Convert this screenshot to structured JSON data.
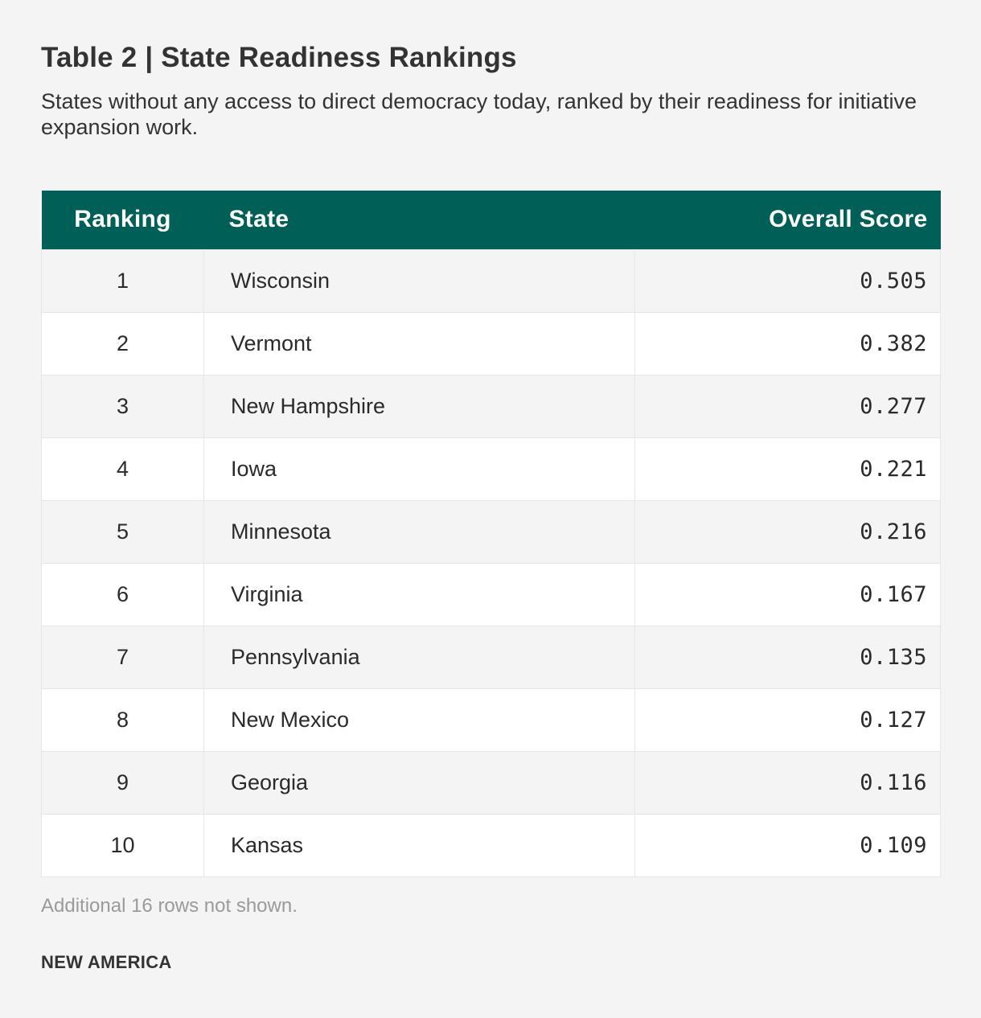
{
  "header": {
    "title": "Table 2 | State Readiness Rankings",
    "subtitle": "States without any access to direct democracy today, ranked by their readiness for initiative expansion work."
  },
  "table": {
    "columns": [
      "Ranking",
      "State",
      "Overall Score"
    ],
    "rows": [
      {
        "rank": "1",
        "state": "Wisconsin",
        "score": "0.505"
      },
      {
        "rank": "2",
        "state": "Vermont",
        "score": "0.382"
      },
      {
        "rank": "3",
        "state": "New Hampshire",
        "score": "0.277"
      },
      {
        "rank": "4",
        "state": "Iowa",
        "score": "0.221"
      },
      {
        "rank": "5",
        "state": "Minnesota",
        "score": "0.216"
      },
      {
        "rank": "6",
        "state": "Virginia",
        "score": "0.167"
      },
      {
        "rank": "7",
        "state": "Pennsylvania",
        "score": "0.135"
      },
      {
        "rank": "8",
        "state": "New Mexico",
        "score": "0.127"
      },
      {
        "rank": "9",
        "state": "Georgia",
        "score": "0.116"
      },
      {
        "rank": "10",
        "state": "Kansas",
        "score": "0.109"
      }
    ]
  },
  "footer": {
    "note": "Additional 16 rows not shown.",
    "brand": "NEW AMERICA"
  },
  "colors": {
    "header_bg": "#005f56",
    "header_text": "#ffffff",
    "page_bg": "#f4f4f4"
  }
}
